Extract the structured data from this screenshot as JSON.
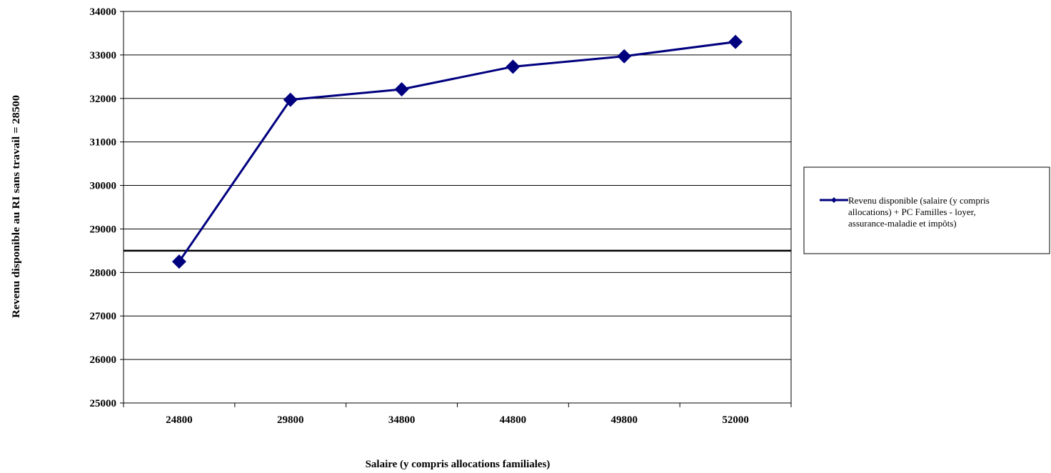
{
  "chart_data": {
    "type": "line",
    "categories": [
      "24800",
      "29800",
      "34800",
      "44800",
      "49800",
      "52000"
    ],
    "series": [
      {
        "name": "Revenu disponible (salaire (y compris allocations) + PC Familles - loyer, assurance-maladie et impôts)",
        "values": [
          28250,
          31970,
          32210,
          32730,
          32970,
          33300
        ],
        "color": "#00007f"
      }
    ],
    "reference_line": {
      "value": 28500,
      "color": "#000000"
    },
    "xlabel": "Salaire (y compris allocations familiales)",
    "ylabel": "Revenu disponible au RI sans travail = 28500",
    "ylim": [
      25000,
      34000
    ],
    "yticks": [
      25000,
      26000,
      27000,
      28000,
      29000,
      30000,
      31000,
      32000,
      33000,
      34000
    ],
    "grid": "horizontal",
    "legend_position": "right",
    "legend_lines": [
      "Revenu disponible (salaire (y compris",
      "allocations) + PC Familles - loyer,",
      "assurance-maladie et impôts)"
    ]
  }
}
